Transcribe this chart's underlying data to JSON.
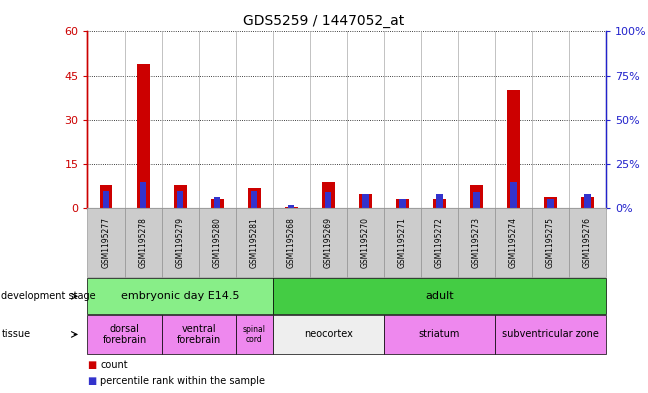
{
  "title": "GDS5259 / 1447052_at",
  "samples": [
    "GSM1195277",
    "GSM1195278",
    "GSM1195279",
    "GSM1195280",
    "GSM1195281",
    "GSM1195268",
    "GSM1195269",
    "GSM1195270",
    "GSM1195271",
    "GSM1195272",
    "GSM1195273",
    "GSM1195274",
    "GSM1195275",
    "GSM1195276"
  ],
  "count_values": [
    8,
    49,
    8,
    3,
    7,
    0.5,
    9,
    5,
    3,
    3,
    8,
    40,
    4,
    4
  ],
  "percentile_values": [
    6,
    9,
    6,
    4,
    6,
    1.2,
    5.4,
    4.8,
    3,
    4.8,
    5.4,
    9,
    3,
    4.8
  ],
  "ylim_left": [
    0,
    60
  ],
  "ylim_right": [
    0,
    100
  ],
  "yticks_left": [
    0,
    15,
    30,
    45,
    60
  ],
  "yticks_right": [
    0,
    25,
    50,
    75,
    100
  ],
  "ytick_labels_left": [
    "0",
    "15",
    "30",
    "45",
    "60"
  ],
  "ytick_labels_right": [
    "0%",
    "25%",
    "50%",
    "75%",
    "100%"
  ],
  "count_color": "#cc0000",
  "percentile_color": "#3333cc",
  "dev_stage_groups": [
    {
      "label": "embryonic day E14.5",
      "start": 0,
      "end": 4,
      "color": "#88ee88"
    },
    {
      "label": "adult",
      "start": 5,
      "end": 13,
      "color": "#44cc44"
    }
  ],
  "tissue_groups": [
    {
      "label": "dorsal\nforebrain",
      "start": 0,
      "end": 1,
      "color": "#ee88ee"
    },
    {
      "label": "ventral\nforebrain",
      "start": 2,
      "end": 3,
      "color": "#ee88ee"
    },
    {
      "label": "spinal\ncord",
      "start": 4,
      "end": 4,
      "color": "#ee88ee"
    },
    {
      "label": "neocortex",
      "start": 5,
      "end": 7,
      "color": "#eeeeee"
    },
    {
      "label": "striatum",
      "start": 8,
      "end": 10,
      "color": "#ee88ee"
    },
    {
      "label": "subventricular zone",
      "start": 11,
      "end": 13,
      "color": "#ee88ee"
    }
  ],
  "legend_count_label": "count",
  "legend_pct_label": "percentile rank within the sample",
  "dev_stage_label": "development stage",
  "tissue_label": "tissue",
  "left_axis_color": "#cc0000",
  "right_axis_color": "#2222cc"
}
